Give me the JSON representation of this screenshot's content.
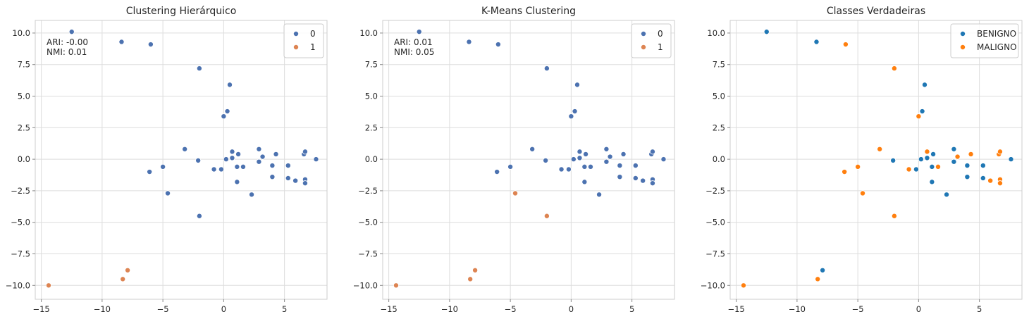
{
  "chart_data": [
    {
      "type": "scatter",
      "title": "Clustering Hierárquico",
      "xlabel": "",
      "ylabel": "",
      "xlim": [
        -15.5,
        8.5
      ],
      "ylim": [
        -11.1,
        11.0
      ],
      "xticks": [
        -15,
        -10,
        -5,
        0,
        5
      ],
      "yticks": [
        -10.0,
        -7.5,
        -5.0,
        -2.5,
        0.0,
        2.5,
        5.0,
        7.5,
        10.0
      ],
      "tick_labels_x": [
        "−15",
        "−10",
        "−5",
        "0",
        "5"
      ],
      "tick_labels_y": [
        "−10.0",
        "−7.5",
        "−5.0",
        "−2.5",
        "0.0",
        "2.5",
        "5.0",
        "7.5",
        "10.0"
      ],
      "grid": true,
      "legend_position": "top-right",
      "annotation": [
        "ARI: -0.00",
        "NMI: 0.01"
      ],
      "series": [
        {
          "name": "0",
          "color": "#4c72b0",
          "points": [
            [
              -12.5,
              10.1
            ],
            [
              -8.4,
              9.3
            ],
            [
              -6.0,
              9.1
            ],
            [
              -2.0,
              7.2
            ],
            [
              0.5,
              5.9
            ],
            [
              0.3,
              3.8
            ],
            [
              0.0,
              3.4
            ],
            [
              -3.2,
              0.8
            ],
            [
              -2.1,
              -0.1
            ],
            [
              -6.1,
              -1.0
            ],
            [
              -5.0,
              -0.6
            ],
            [
              -4.6,
              -2.7
            ],
            [
              -0.8,
              -0.8
            ],
            [
              -0.2,
              -0.8
            ],
            [
              0.2,
              0.0
            ],
            [
              0.7,
              0.6
            ],
            [
              0.7,
              0.1
            ],
            [
              1.2,
              0.4
            ],
            [
              1.1,
              -0.6
            ],
            [
              1.6,
              -0.6
            ],
            [
              2.9,
              0.8
            ],
            [
              3.2,
              0.2
            ],
            [
              4.3,
              0.4
            ],
            [
              2.9,
              -0.2
            ],
            [
              4.0,
              -0.5
            ],
            [
              5.3,
              -0.5
            ],
            [
              7.6,
              0.0
            ],
            [
              6.6,
              0.4
            ],
            [
              6.7,
              0.6
            ],
            [
              5.3,
              -1.5
            ],
            [
              4.0,
              -1.4
            ],
            [
              1.1,
              -1.8
            ],
            [
              5.9,
              -1.7
            ],
            [
              6.7,
              -1.6
            ],
            [
              6.7,
              -1.9
            ],
            [
              2.3,
              -2.8
            ],
            [
              -2.0,
              -4.5
            ]
          ]
        },
        {
          "name": "1",
          "color": "#dd8452",
          "points": [
            [
              -14.4,
              -10.0
            ],
            [
              -8.3,
              -9.5
            ],
            [
              -7.9,
              -8.8
            ]
          ]
        }
      ]
    },
    {
      "type": "scatter",
      "title": "K-Means Clustering",
      "xlabel": "",
      "ylabel": "",
      "xlim": [
        -15.5,
        8.5
      ],
      "ylim": [
        -11.1,
        11.0
      ],
      "xticks": [
        -15,
        -10,
        -5,
        0,
        5
      ],
      "yticks": [
        -10.0,
        -7.5,
        -5.0,
        -2.5,
        0.0,
        2.5,
        5.0,
        7.5,
        10.0
      ],
      "tick_labels_x": [
        "−15",
        "−10",
        "−5",
        "0",
        "5"
      ],
      "tick_labels_y": [
        "−10.0",
        "−7.5",
        "−5.0",
        "−2.5",
        "0.0",
        "2.5",
        "5.0",
        "7.5",
        "10.0"
      ],
      "grid": true,
      "legend_position": "top-right",
      "annotation": [
        "ARI: 0.01",
        "NMI: 0.05"
      ],
      "series": [
        {
          "name": "0",
          "color": "#4c72b0",
          "points": [
            [
              -12.5,
              10.1
            ],
            [
              -8.4,
              9.3
            ],
            [
              -6.0,
              9.1
            ],
            [
              -2.0,
              7.2
            ],
            [
              0.5,
              5.9
            ],
            [
              0.3,
              3.8
            ],
            [
              0.0,
              3.4
            ],
            [
              -3.2,
              0.8
            ],
            [
              -2.1,
              -0.1
            ],
            [
              -6.1,
              -1.0
            ],
            [
              -5.0,
              -0.6
            ],
            [
              -0.8,
              -0.8
            ],
            [
              -0.2,
              -0.8
            ],
            [
              0.2,
              0.0
            ],
            [
              0.7,
              0.6
            ],
            [
              0.7,
              0.1
            ],
            [
              1.2,
              0.4
            ],
            [
              1.1,
              -0.6
            ],
            [
              1.6,
              -0.6
            ],
            [
              2.9,
              0.8
            ],
            [
              3.2,
              0.2
            ],
            [
              4.3,
              0.4
            ],
            [
              2.9,
              -0.2
            ],
            [
              4.0,
              -0.5
            ],
            [
              5.3,
              -0.5
            ],
            [
              7.6,
              0.0
            ],
            [
              6.6,
              0.4
            ],
            [
              6.7,
              0.6
            ],
            [
              5.3,
              -1.5
            ],
            [
              4.0,
              -1.4
            ],
            [
              1.1,
              -1.8
            ],
            [
              5.9,
              -1.7
            ],
            [
              6.7,
              -1.6
            ],
            [
              6.7,
              -1.9
            ],
            [
              2.3,
              -2.8
            ]
          ]
        },
        {
          "name": "1",
          "color": "#dd8452",
          "points": [
            [
              -4.6,
              -2.7
            ],
            [
              -2.0,
              -4.5
            ],
            [
              -14.4,
              -10.0
            ],
            [
              -8.3,
              -9.5
            ],
            [
              -7.9,
              -8.8
            ]
          ]
        }
      ]
    },
    {
      "type": "scatter",
      "title": "Classes Verdadeiras",
      "xlabel": "",
      "ylabel": "",
      "xlim": [
        -15.5,
        8.5
      ],
      "ylim": [
        -11.1,
        11.0
      ],
      "xticks": [
        -15,
        -10,
        -5,
        0,
        5
      ],
      "yticks": [
        -10.0,
        -7.5,
        -5.0,
        -2.5,
        0.0,
        2.5,
        5.0,
        7.5,
        10.0
      ],
      "tick_labels_x": [
        "−15",
        "−10",
        "−5",
        "0",
        "5"
      ],
      "tick_labels_y": [
        "−10.0",
        "−7.5",
        "−5.0",
        "−2.5",
        "0.0",
        "2.5",
        "5.0",
        "7.5",
        "10.0"
      ],
      "grid": true,
      "legend_position": "top-right",
      "annotation": [],
      "series": [
        {
          "name": "BENIGNO",
          "color": "#1f77b4",
          "points": [
            [
              -12.5,
              10.1
            ],
            [
              -8.4,
              9.3
            ],
            [
              0.5,
              5.9
            ],
            [
              0.3,
              3.8
            ],
            [
              -2.1,
              -0.1
            ],
            [
              -0.2,
              -0.8
            ],
            [
              0.2,
              0.0
            ],
            [
              0.7,
              0.1
            ],
            [
              1.2,
              0.4
            ],
            [
              1.1,
              -0.6
            ],
            [
              2.9,
              0.8
            ],
            [
              2.9,
              -0.2
            ],
            [
              4.0,
              -0.5
            ],
            [
              5.3,
              -0.5
            ],
            [
              7.6,
              0.0
            ],
            [
              5.3,
              -1.5
            ],
            [
              4.0,
              -1.4
            ],
            [
              1.1,
              -1.8
            ],
            [
              2.3,
              -2.8
            ],
            [
              -7.9,
              -8.8
            ]
          ]
        },
        {
          "name": "MALIGNO",
          "color": "#ff7f0e",
          "points": [
            [
              -6.0,
              9.1
            ],
            [
              -2.0,
              7.2
            ],
            [
              0.0,
              3.4
            ],
            [
              -3.2,
              0.8
            ],
            [
              -6.1,
              -1.0
            ],
            [
              -5.0,
              -0.6
            ],
            [
              -4.6,
              -2.7
            ],
            [
              -0.8,
              -0.8
            ],
            [
              0.7,
              0.6
            ],
            [
              1.6,
              -0.6
            ],
            [
              3.2,
              0.2
            ],
            [
              4.3,
              0.4
            ],
            [
              6.6,
              0.4
            ],
            [
              6.7,
              0.6
            ],
            [
              5.9,
              -1.7
            ],
            [
              6.7,
              -1.6
            ],
            [
              6.7,
              -1.9
            ],
            [
              -2.0,
              -4.5
            ],
            [
              -14.4,
              -10.0
            ],
            [
              -8.3,
              -9.5
            ]
          ]
        }
      ]
    }
  ]
}
